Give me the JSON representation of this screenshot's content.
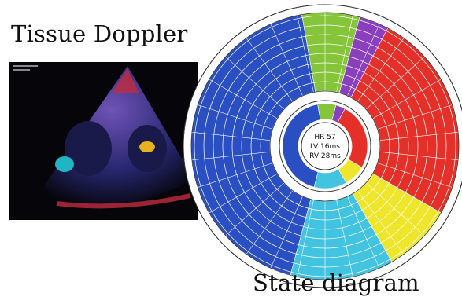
{
  "labels": {
    "tissue_doppler": "Tissue Doppler",
    "state_diagram": "State diagram"
  },
  "center": {
    "line1": "HR 57",
    "line2": "LV 16ms",
    "line3": "RV 28ms"
  },
  "sectors": [
    {
      "name": "blue",
      "color": "#2a4fc2",
      "start": 195,
      "end": 350
    },
    {
      "name": "green",
      "color": "#86c43a",
      "start": 350,
      "end": 15
    },
    {
      "name": "purple",
      "color": "#8a3fbf",
      "start": 15,
      "end": 28
    },
    {
      "name": "red",
      "color": "#e5302a",
      "start": 28,
      "end": 120
    },
    {
      "name": "yellow",
      "color": "#efe62c",
      "start": 120,
      "end": 150
    },
    {
      "name": "cyan",
      "color": "#42c3e0",
      "start": 150,
      "end": 195
    }
  ],
  "echo_icon": "tissue-doppler-echo-image"
}
